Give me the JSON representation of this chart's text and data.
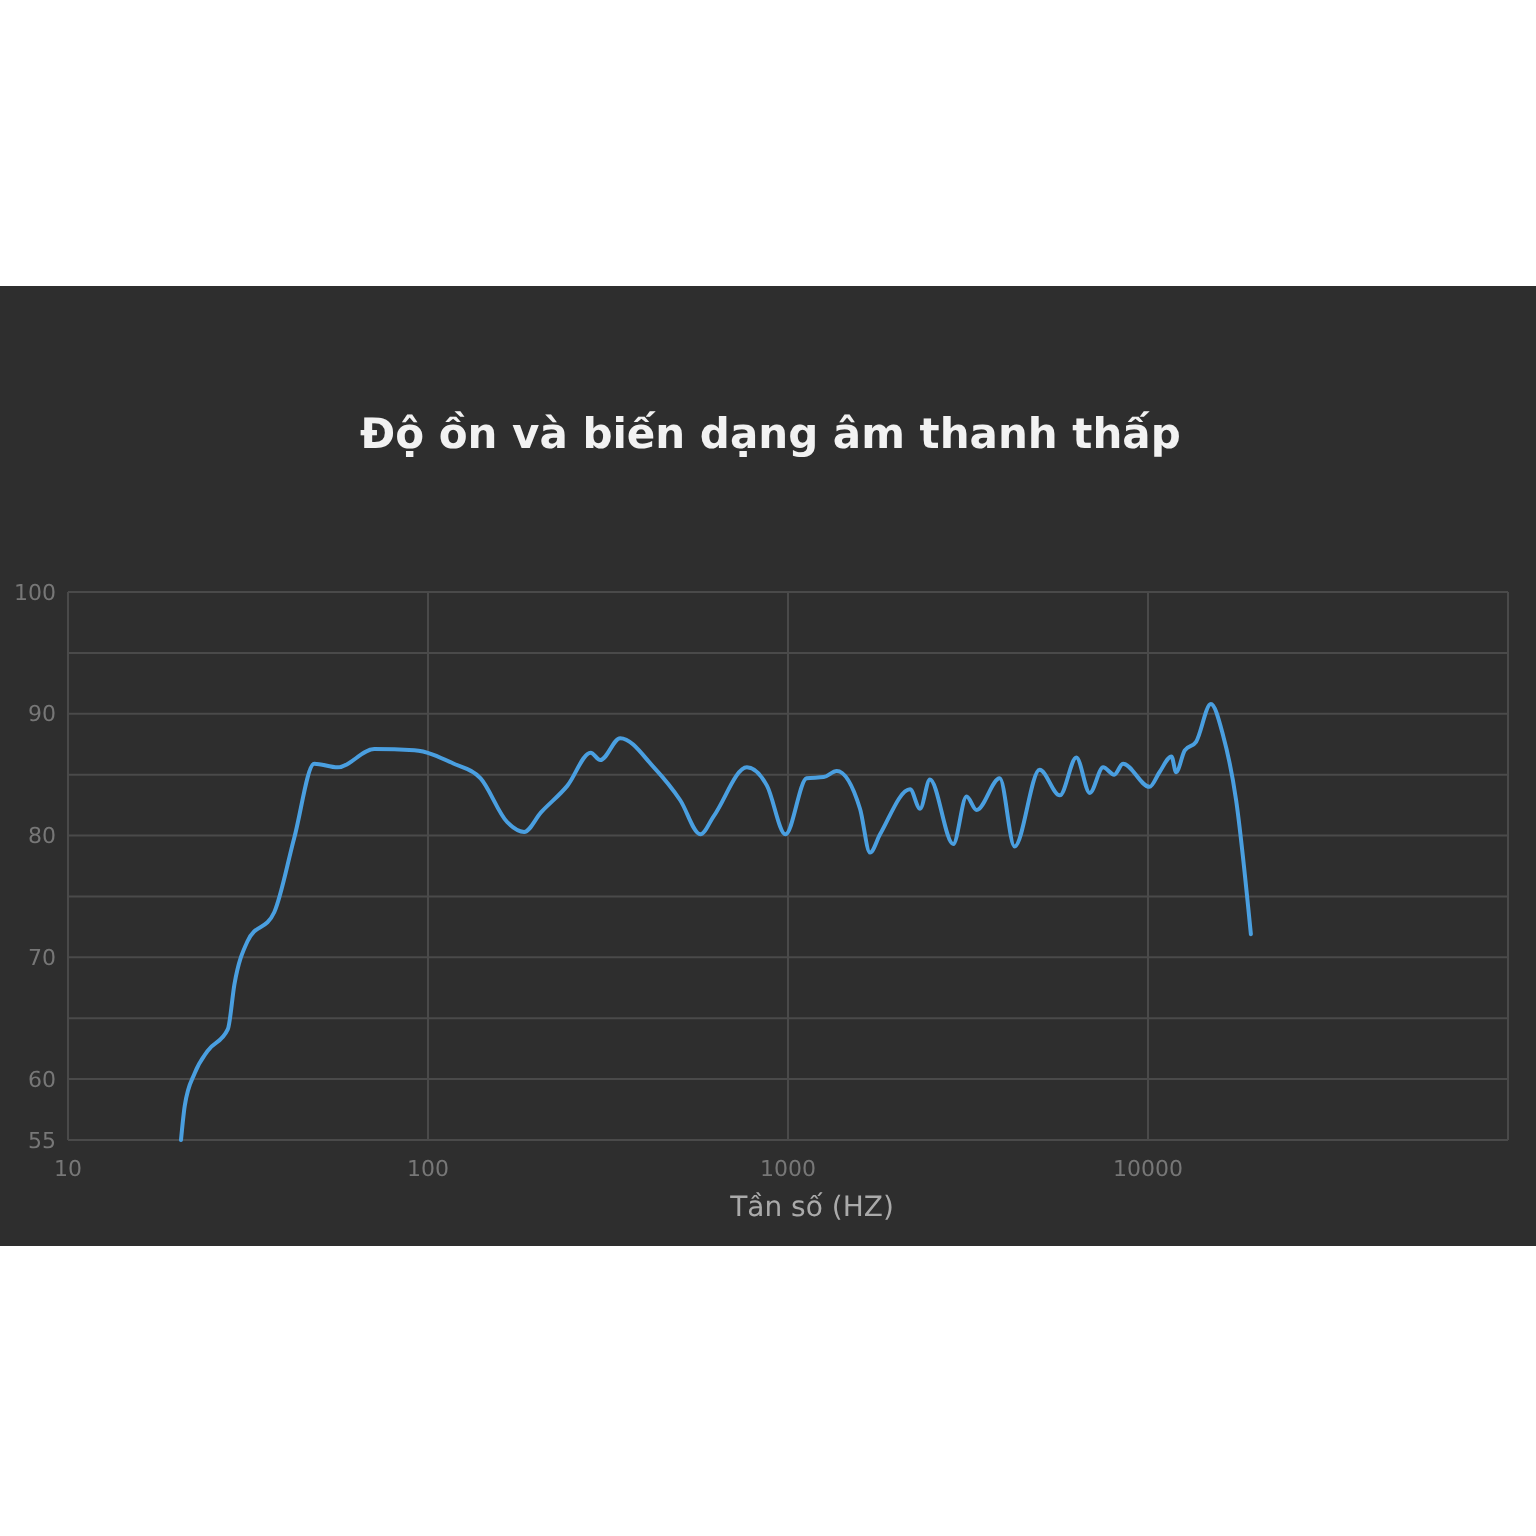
{
  "chart_data": {
    "type": "line",
    "title": "Độ ồn và biến dạng âm thanh thấp",
    "xlabel": "Tần số (HZ)",
    "log": "x",
    "grid": true,
    "marker": "none",
    "line_style": "solid",
    "xlim": [
      10,
      100000
    ],
    "xticks": [
      10,
      100,
      1000,
      10000
    ],
    "ylim": [
      55,
      100
    ],
    "yticks": [
      55,
      60,
      {
        "value": 65,
        "label": null
      },
      70,
      {
        "value": 75,
        "label": null
      },
      80,
      {
        "value": 85,
        "label": null
      },
      90,
      {
        "value": 95,
        "label": null
      },
      100
    ],
    "series": [
      {
        "color": "#4a9fe0",
        "x": [
          20.6,
          21.1,
          22.5,
          24.4,
          27.8,
          29.0,
          31.5,
          37.4,
          42.5,
          48.3,
          56.1,
          70.9,
          91.6,
          118,
          140,
          166,
          185,
          206,
          244,
          283,
          301,
          342,
          424,
          502,
          571,
          622,
          769,
          874,
          984,
          1127,
          1256,
          1366,
          1585,
          1690,
          1802,
          2183,
          2327,
          2479,
          2877,
          3133,
          3342,
          3874,
          4260,
          5000,
          5689,
          6325,
          6890,
          7505,
          8056,
          8524,
          10100,
          10760,
          11620,
          11970,
          12650,
          13600,
          14950,
          16140,
          17570,
          19310
        ],
        "values": [
          55,
          57.8,
          60.5,
          62.3,
          64.1,
          67.8,
          71.3,
          73.7,
          79.8,
          85.9,
          85.6,
          87.1,
          87.0,
          85.9,
          84.7,
          81.1,
          80.3,
          81.9,
          84.1,
          86.8,
          86.2,
          88.0,
          85.6,
          82.9,
          80.1,
          81.6,
          85.6,
          84.1,
          80.1,
          84.7,
          84.8,
          85.3,
          82.2,
          78.6,
          80.1,
          83.8,
          82.2,
          84.6,
          79.3,
          83.2,
          82.1,
          84.7,
          79.1,
          85.4,
          83.3,
          86.4,
          83.5,
          85.6,
          85.0,
          85.9,
          84.0,
          85.2,
          86.5,
          85.2,
          87.0,
          87.7,
          90.8,
          88.3,
          82.9,
          71.9
        ]
      }
    ]
  }
}
